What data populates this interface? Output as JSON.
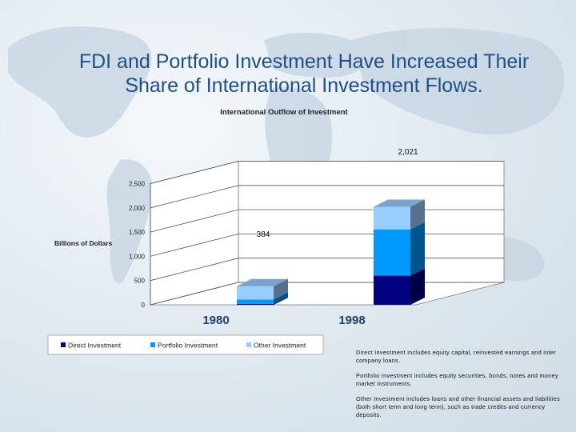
{
  "slide": {
    "title_line1": "FDI and Portfolio Investment Have Increased Their",
    "title_line2": "Share of International Investment Flows."
  },
  "chart_data": {
    "type": "bar",
    "stacked": true,
    "three_d": true,
    "title": "International  Outflow of Investment",
    "ylabel": "Billions of Dollars",
    "xlabel": "",
    "categories": [
      "1980",
      "1998"
    ],
    "ylim": [
      0,
      2500
    ],
    "yticks": [
      "0",
      "500",
      "1,000",
      "1,500",
      "2,000",
      "2,500"
    ],
    "series": [
      {
        "name": "Direct Investment",
        "color": "#000080",
        "values": [
          19,
          601
        ]
      },
      {
        "name": "Portfolio Investment",
        "color": "#0099ff",
        "values": [
          88,
          955
        ]
      },
      {
        "name": "Other Investment",
        "color": "#99ccff",
        "values": [
          277,
          465
        ]
      }
    ],
    "totals": [
      384,
      2021
    ],
    "total_labels": [
      "384",
      "2,021"
    ],
    "legend_position": "bottom",
    "grid": true
  },
  "notes": [
    "Direct Investment includes  equity capital, reinvested earnings and inter company loans.",
    "Portfolio Investment includes equity securities, bonds, notes and money market instruments.",
    "Other Investment  includes loans and other financial assets and liabilities (both short term and long term), such as trade credits and currency deposits."
  ]
}
